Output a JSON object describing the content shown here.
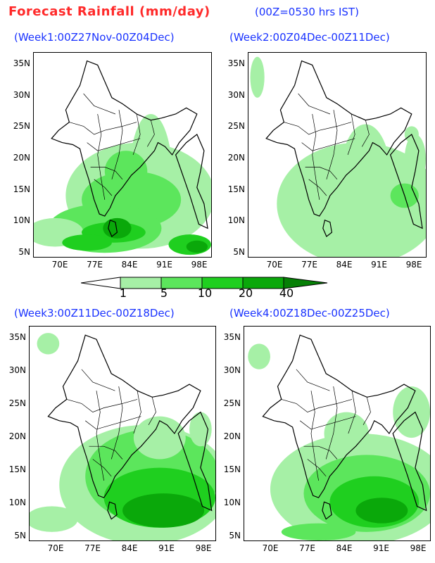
{
  "title": "Forecast Rainfall (mm/day)",
  "subtitle": "(00Z=0530 hrs IST)",
  "panels": [
    {
      "label": "(Week1:00Z27Nov-00Z04Dec)"
    },
    {
      "label": "(Week2:00Z04Dec-00Z11Dec)"
    },
    {
      "label": "(Week3:00Z11Dec-00Z18Dec)"
    },
    {
      "label": "(Week4:00Z18Dec-00Z25Dec)"
    }
  ],
  "axes": {
    "lat_ticks": [
      "35N",
      "30N",
      "25N",
      "20N",
      "15N",
      "10N",
      "5N"
    ],
    "lon_ticks": [
      "70E",
      "77E",
      "84E",
      "91E",
      "98E"
    ]
  },
  "colorbar": {
    "levels": [
      "1",
      "5",
      "10",
      "20",
      "40"
    ],
    "colors": [
      "#ffffff",
      "#a6f0a6",
      "#5ce65c",
      "#1fcf1f",
      "#0aa80a",
      "#068006"
    ]
  }
}
